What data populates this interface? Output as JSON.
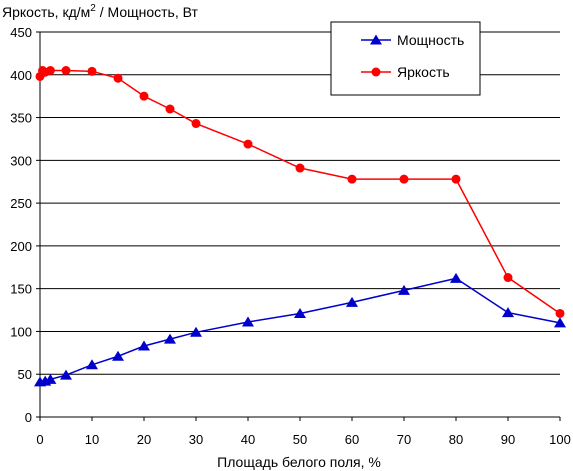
{
  "chart_data": {
    "type": "line",
    "title": "",
    "ylabel_main": "Яркость, кд/м",
    "ylabel_sup": "2",
    "ylabel_rest": " / Мощность, Вт",
    "xlabel": "Площадь белого поля, %",
    "xlim": [
      0,
      100
    ],
    "ylim": [
      0,
      450
    ],
    "x_ticks": [
      0,
      10,
      20,
      30,
      40,
      50,
      60,
      70,
      80,
      90,
      100
    ],
    "y_ticks": [
      0,
      50,
      100,
      150,
      200,
      250,
      300,
      350,
      400,
      450
    ],
    "grid": "horizontal",
    "legend_position": "top-right",
    "series": [
      {
        "name": "Мощность",
        "color": "#0000cc",
        "marker": "triangle",
        "x": [
          0,
          1,
          2,
          5,
          10,
          15,
          20,
          25,
          30,
          40,
          50,
          60,
          70,
          80,
          90,
          100
        ],
        "y": [
          41,
          42,
          44,
          49,
          61,
          71,
          83,
          91,
          99,
          111,
          121,
          134,
          148,
          162,
          122,
          110
        ]
      },
      {
        "name": "Яркость",
        "color": "#ff0000",
        "marker": "circle",
        "x": [
          0,
          0.5,
          1,
          2,
          5,
          10,
          15,
          20,
          25,
          30,
          40,
          50,
          60,
          70,
          80,
          90,
          100
        ],
        "y": [
          398,
          405,
          403,
          405,
          405,
          404,
          396,
          375,
          360,
          343,
          319,
          291,
          278,
          278,
          278,
          163,
          121
        ]
      }
    ]
  }
}
